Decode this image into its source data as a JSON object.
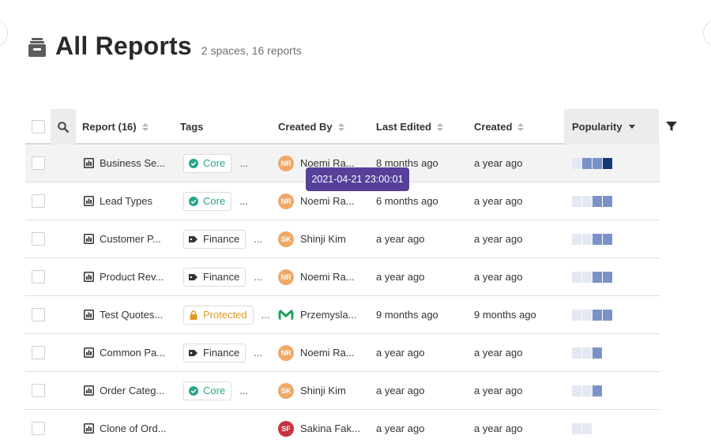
{
  "header": {
    "title": "All Reports",
    "subtitle": "2 spaces, 16 reports"
  },
  "columns": {
    "report": "Report (16)",
    "tags": "Tags",
    "created_by": "Created By",
    "last_edited": "Last Edited",
    "created": "Created",
    "popularity": "Popularity"
  },
  "colors": {
    "accent_purple": "#56409a",
    "tag_core": "#2aa48b",
    "tag_protected": "#e09a28",
    "bar_empty": "#e3e8f2",
    "bar_mid": "#7a92c7",
    "bar_high": "#123a78"
  },
  "rows": [
    {
      "name": "Business Se...",
      "tag": "Core",
      "tag_type": "core",
      "ellipsis": "...",
      "creator": "Noemi Ra...",
      "initials": "NR",
      "avatar_color": "#f0a868",
      "last_edited": "8 months ago",
      "created": "a year ago",
      "popularity": 4,
      "hover": true
    },
    {
      "name": "Lead Types",
      "tag": "Core",
      "tag_type": "core",
      "ellipsis": "...",
      "creator": "Noemi Ra...",
      "initials": "NR",
      "avatar_color": "#f0a868",
      "last_edited": "6 months ago",
      "created": "a year ago",
      "popularity": 3
    },
    {
      "name": "Customer P...",
      "tag": "Finance",
      "tag_type": "finance",
      "ellipsis": "...",
      "creator": "Shinji Kim",
      "initials": "SK",
      "avatar_color": "#f0a868",
      "last_edited": "a year ago",
      "created": "a year ago",
      "popularity": 3
    },
    {
      "name": "Product Rev...",
      "tag": "Finance",
      "tag_type": "finance",
      "ellipsis": "...",
      "creator": "Noemi Ra...",
      "initials": "NR",
      "avatar_color": "#f0a868",
      "last_edited": "a year ago",
      "created": "a year ago",
      "popularity": 3
    },
    {
      "name": "Test Quotes...",
      "tag": "Protected",
      "tag_type": "protected",
      "ellipsis": "...",
      "creator": "Przemysla...",
      "initials": "M",
      "avatar_color": "#1aa35a",
      "last_edited": "9 months ago",
      "created": "9 months ago",
      "popularity": 3
    },
    {
      "name": "Common Pa...",
      "tag": "Finance",
      "tag_type": "finance",
      "ellipsis": "...",
      "creator": "Noemi Ra...",
      "initials": "NR",
      "avatar_color": "#f0a868",
      "last_edited": "a year ago",
      "created": "a year ago",
      "popularity": 2
    },
    {
      "name": "Order Categ...",
      "tag": "Core",
      "tag_type": "core",
      "ellipsis": "...",
      "creator": "Shinji Kim",
      "initials": "SK",
      "avatar_color": "#f0a868",
      "last_edited": "a year ago",
      "created": "a year ago",
      "popularity": 2
    },
    {
      "name": "Clone of Ord...",
      "tag": "",
      "tag_type": "none",
      "ellipsis": "",
      "creator": "Sakina Fak...",
      "initials": "SF",
      "avatar_color": "#c8323f",
      "last_edited": "a year ago",
      "created": "a year ago",
      "popularity": 0
    }
  ],
  "tooltip": {
    "text": "2021-04-21 23:00:01"
  }
}
